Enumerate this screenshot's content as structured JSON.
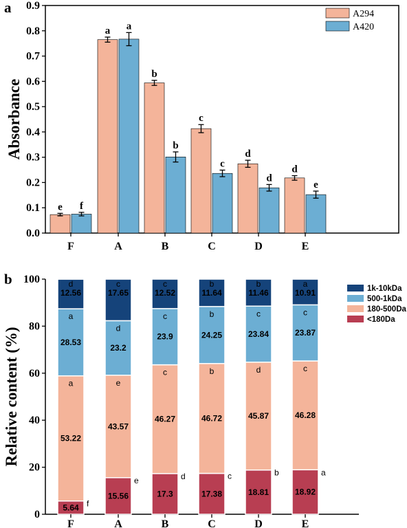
{
  "chart_data": [
    {
      "type": "bar",
      "panel_label": "a",
      "ylabel": "Absorbance",
      "xlabel": "",
      "ylim": [
        0,
        0.9
      ],
      "yticks": [
        "0.0",
        "0.1",
        "0.2",
        "0.3",
        "0.4",
        "0.5",
        "0.6",
        "0.7",
        "0.8",
        "0.9"
      ],
      "categories": [
        "F",
        "A",
        "B",
        "C",
        "D",
        "E"
      ],
      "legend_position": "top-right",
      "series": [
        {
          "name": "A294",
          "color": "#F4B49A",
          "values": [
            0.073,
            0.765,
            0.594,
            0.413,
            0.274,
            0.218
          ],
          "errors": [
            0.005,
            0.01,
            0.01,
            0.016,
            0.014,
            0.009
          ],
          "letters": [
            "e",
            "a",
            "b",
            "c",
            "d",
            "d"
          ]
        },
        {
          "name": "A420",
          "color": "#6CAED3",
          "values": [
            0.075,
            0.767,
            0.301,
            0.236,
            0.179,
            0.152
          ],
          "errors": [
            0.007,
            0.026,
            0.02,
            0.013,
            0.013,
            0.014
          ],
          "letters": [
            "f",
            "a",
            "b",
            "c",
            "d",
            "e"
          ]
        }
      ]
    },
    {
      "type": "bar",
      "stacked": true,
      "panel_label": "b",
      "ylabel": "Relative content (%)",
      "xlabel": "",
      "ylim": [
        0,
        100
      ],
      "yticks": [
        "0",
        "20",
        "40",
        "60",
        "80",
        "100"
      ],
      "categories": [
        "F",
        "A",
        "B",
        "C",
        "D",
        "E"
      ],
      "legend_position": "top-right",
      "series": [
        {
          "name": "<180Da",
          "color": "#B83E52",
          "values": [
            5.64,
            15.56,
            17.3,
            17.38,
            18.81,
            18.92
          ],
          "labels": [
            "5.64",
            "15.56",
            "17.3",
            "17.38",
            "18.81",
            "18.92"
          ],
          "letters": [
            "f",
            "e",
            "d",
            "c",
            "b",
            "a"
          ]
        },
        {
          "name": "180-500Da",
          "color": "#F4B49A",
          "values": [
            53.22,
            43.57,
            46.27,
            46.72,
            45.87,
            46.28
          ],
          "labels": [
            "53.22",
            "43.57",
            "46.27",
            "46.72",
            "45.87",
            "46.28"
          ],
          "letters": [
            "a",
            "e",
            "c",
            "b",
            "d",
            "c"
          ]
        },
        {
          "name": "500-1kDa",
          "color": "#6CAED3",
          "values": [
            28.53,
            23.2,
            23.9,
            24.25,
            23.84,
            23.87
          ],
          "labels": [
            "28.53",
            "23.2",
            "23.9",
            "24.25",
            "23.84",
            "23.87"
          ],
          "letters": [
            "a",
            "d",
            "c",
            "b",
            "c",
            "c"
          ]
        },
        {
          "name": "1k-10kDa",
          "color": "#15437A",
          "values": [
            12.56,
            17.65,
            12.52,
            11.64,
            11.46,
            10.91
          ],
          "labels": [
            "12.56",
            "17.65",
            "12.52",
            "11.64",
            "11.46",
            "10.91"
          ],
          "letters": [
            "d",
            "c",
            "c",
            "b",
            "b",
            "a"
          ]
        }
      ]
    }
  ]
}
